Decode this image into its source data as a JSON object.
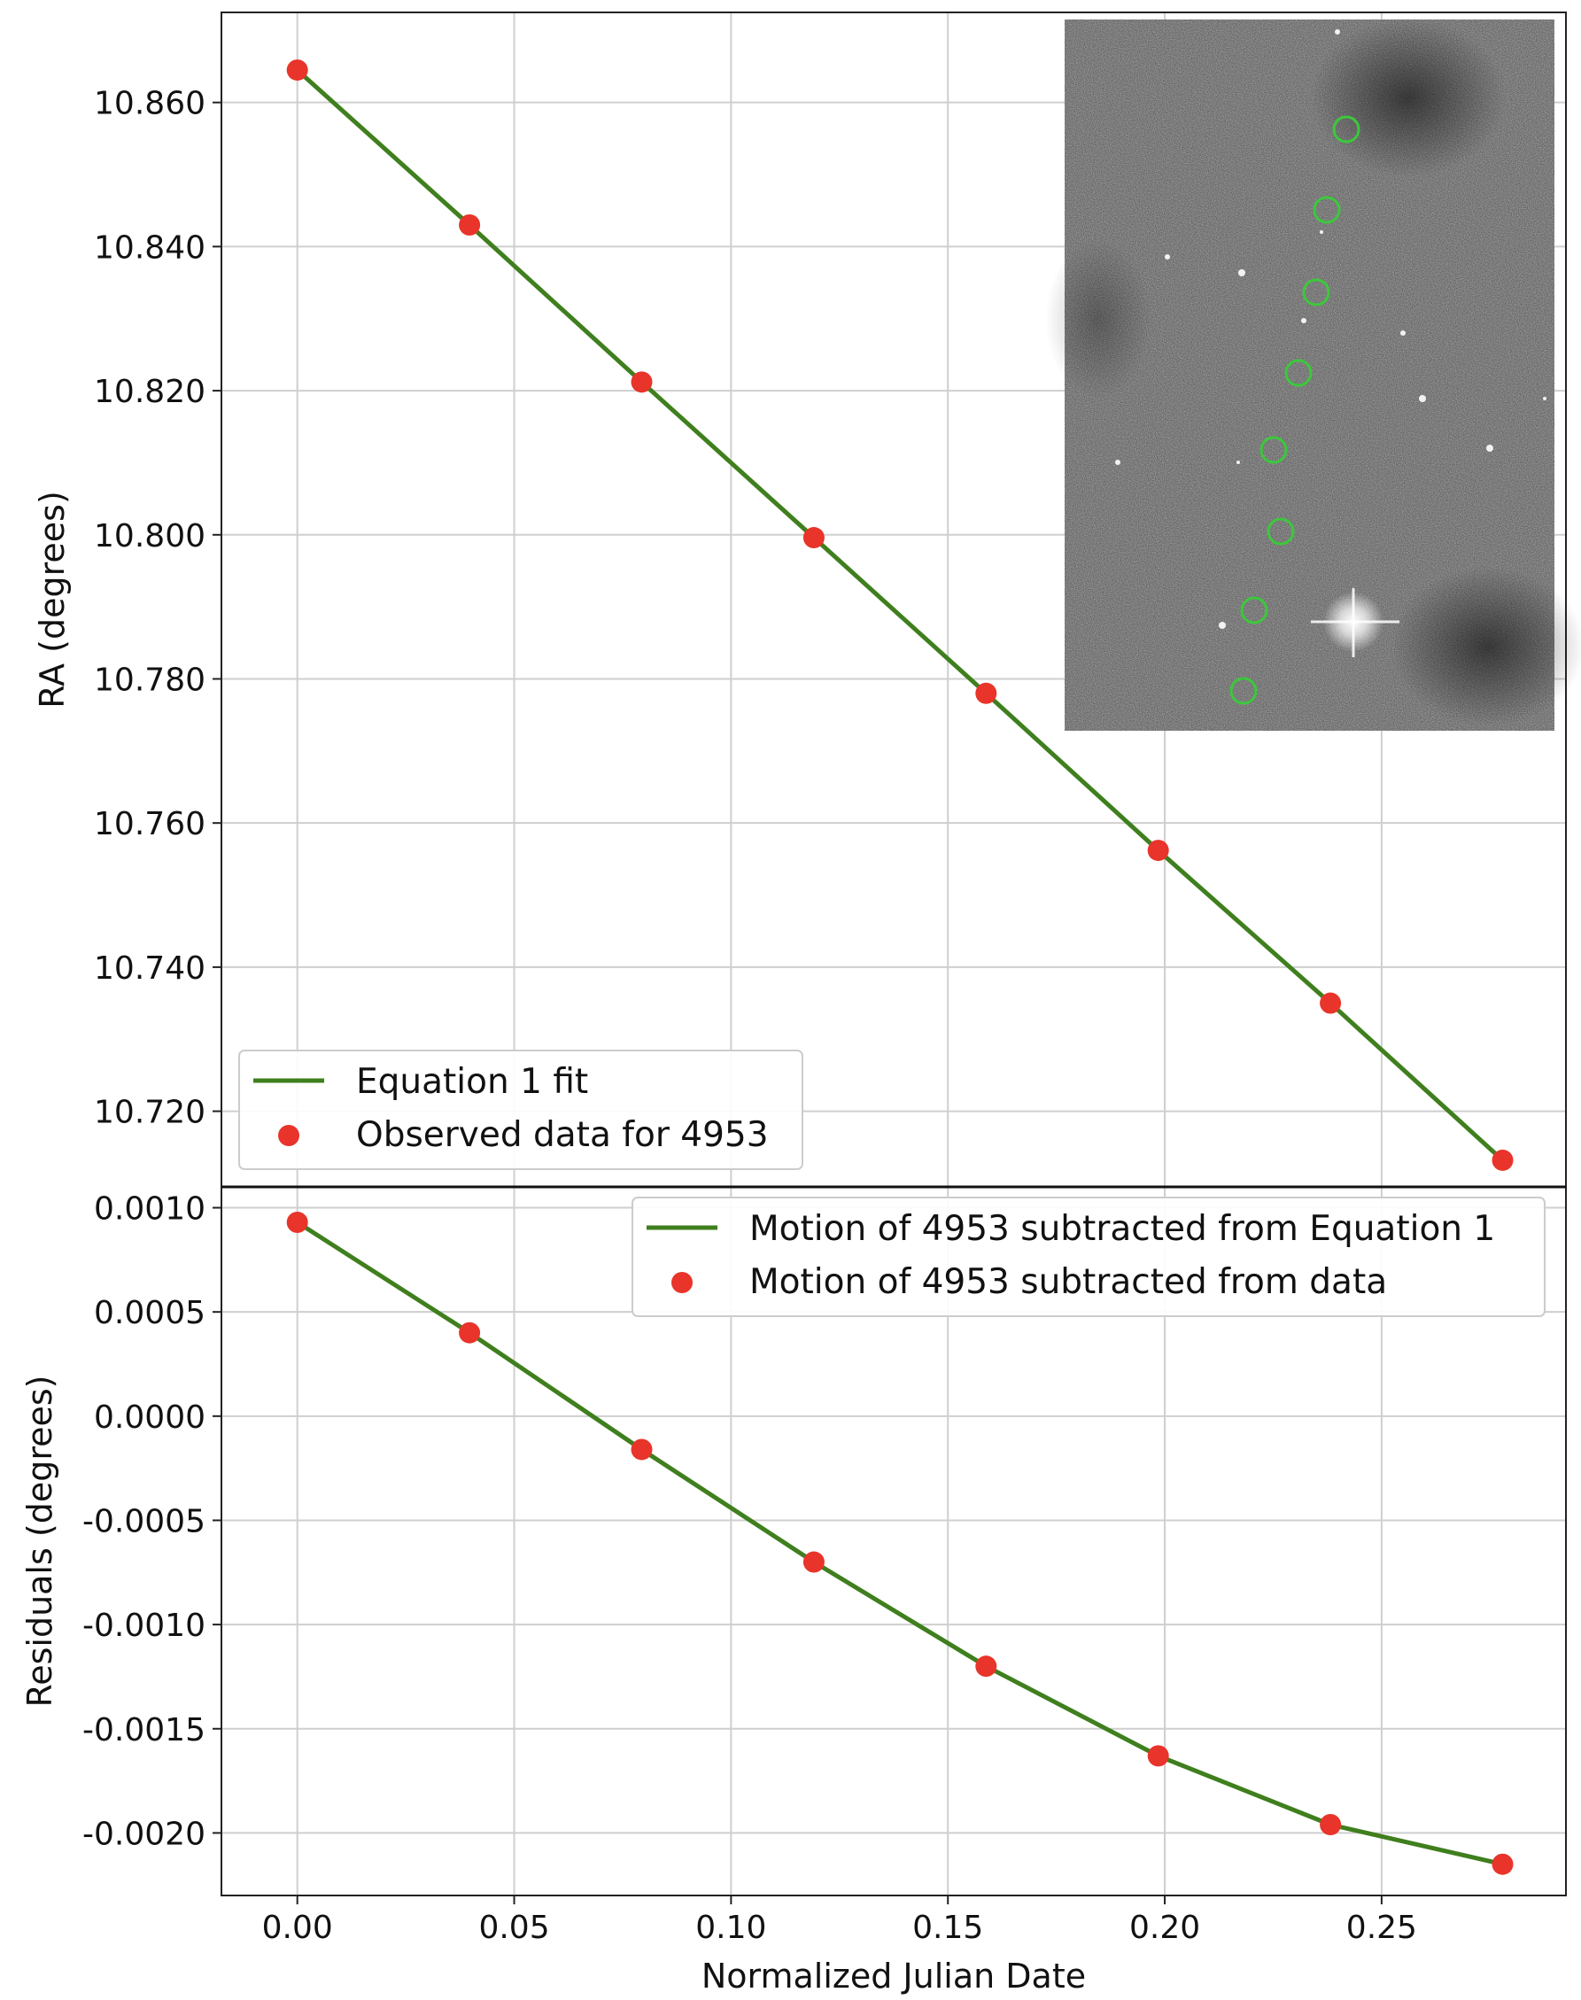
{
  "chart_data": [
    {
      "type": "line",
      "panel": "top",
      "xlabel": "",
      "ylabel": "RA (degrees)",
      "xlim": [
        -0.0175,
        0.2925
      ],
      "ylim": [
        10.7095,
        10.8725
      ],
      "yticks": [
        "10.860",
        "10.840",
        "10.820",
        "10.800",
        "10.780",
        "10.760",
        "10.740",
        "10.720"
      ],
      "ytick_values": [
        10.86,
        10.84,
        10.82,
        10.8,
        10.78,
        10.76,
        10.74,
        10.72
      ],
      "grid": true,
      "legend_position": "lower-left",
      "colors": {
        "fit": "#3f7f1e",
        "observed": "#e8342a"
      },
      "series": [
        {
          "name": "Equation 1 fit",
          "kind": "line",
          "x": [
            0.0,
            0.0397,
            0.0794,
            0.1191,
            0.1588,
            0.1985,
            0.2382,
            0.2779
          ],
          "y": [
            10.8645,
            10.843,
            10.8212,
            10.7996,
            10.778,
            10.7562,
            10.735,
            10.7132
          ]
        },
        {
          "name": "Observed data for 4953",
          "kind": "scatter",
          "x": [
            0.0,
            0.0397,
            0.0794,
            0.1191,
            0.1588,
            0.1985,
            0.2382,
            0.2779
          ],
          "y": [
            10.8645,
            10.843,
            10.8212,
            10.7996,
            10.778,
            10.7562,
            10.735,
            10.7132
          ]
        }
      ],
      "inset": {
        "content": "grayscale sky image with tracked object circles",
        "circle_color": "#3cc83c"
      }
    },
    {
      "type": "line",
      "panel": "bottom",
      "xlabel": "Normalized Julian Date",
      "ylabel": "Residuals (degrees)",
      "xlim": [
        -0.0175,
        0.2925
      ],
      "ylim": [
        -0.0023,
        0.0011
      ],
      "xticks": [
        "0.00",
        "0.05",
        "0.10",
        "0.15",
        "0.20",
        "0.25"
      ],
      "xtick_values": [
        0.0,
        0.05,
        0.1,
        0.15,
        0.2,
        0.25
      ],
      "yticks": [
        "0.0010",
        "0.0005",
        "0.0000",
        "-0.0005",
        "-0.0010",
        "-0.0015",
        "-0.0020"
      ],
      "ytick_values": [
        0.001,
        0.0005,
        0.0,
        -0.0005,
        -0.001,
        -0.0015,
        -0.002
      ],
      "grid": true,
      "legend_position": "top-right",
      "colors": {
        "fit": "#3f7f1e",
        "observed": "#e8342a"
      },
      "series": [
        {
          "name": "Motion of 4953 subtracted from Equation 1",
          "kind": "line",
          "x": [
            0.0,
            0.0397,
            0.0794,
            0.1191,
            0.1588,
            0.1985,
            0.2382,
            0.2779
          ],
          "y": [
            0.00093,
            0.0004,
            -0.00016,
            -0.0007,
            -0.0012,
            -0.00163,
            -0.00196,
            -0.00215
          ]
        },
        {
          "name": "Motion of 4953 subtracted from data",
          "kind": "scatter",
          "x": [
            0.0,
            0.0397,
            0.0794,
            0.1191,
            0.1588,
            0.1985,
            0.2382,
            0.2779
          ],
          "y": [
            0.00093,
            0.0004,
            -0.00016,
            -0.0007,
            -0.0012,
            -0.00163,
            -0.00196,
            -0.00215
          ]
        }
      ]
    }
  ]
}
